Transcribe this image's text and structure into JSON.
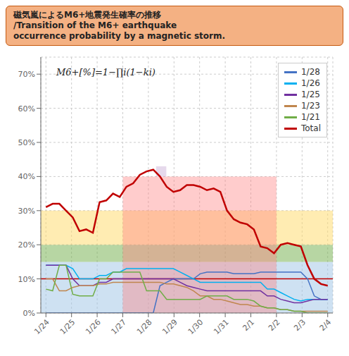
{
  "chart_data": {
    "type": "line",
    "title": "磁気嵐によるM6+地震発生確率の推移\n/Transition of the M6+ earthquake\noccurrence probability by a magnetic storm.",
    "x": [
      0,
      0.261905,
      0.52381,
      0.785714,
      1.047619,
      1.309524,
      1.571429,
      1.833333,
      2.095238,
      2.357143,
      2.619048,
      2.880952,
      3.142857,
      3.404762,
      3.666667,
      3.928571,
      4.190476,
      4.452381,
      4.714286,
      4.97619,
      5.238095,
      5.5,
      5.761905,
      6.02381,
      6.285714,
      6.547619,
      6.809524,
      7.071429,
      7.333333,
      7.595238,
      7.857143,
      8.119048,
      8.380952,
      8.642857,
      8.904762,
      9.166667,
      9.428571,
      9.690476,
      9.952381,
      10.214286,
      10.47619,
      10.738095,
      11
    ],
    "xlim": [
      -0.2,
      11.2
    ],
    "xticks": [
      {
        "value": 0,
        "label": "1/24"
      },
      {
        "value": 1,
        "label": "1/25"
      },
      {
        "value": 2,
        "label": "1/26"
      },
      {
        "value": 3,
        "label": "1/27"
      },
      {
        "value": 4,
        "label": "1/28"
      },
      {
        "value": 5,
        "label": "1/29"
      },
      {
        "value": 6,
        "label": "1/30"
      },
      {
        "value": 7,
        "label": "1/31"
      },
      {
        "value": 8,
        "label": "2/1"
      },
      {
        "value": 9,
        "label": "2/2"
      },
      {
        "value": 10,
        "label": "2/3"
      },
      {
        "value": 11,
        "label": "2/4"
      }
    ],
    "ylim": [
      0.0,
      0.75
    ],
    "yticks": [
      {
        "value": 0.0,
        "label": "0%"
      },
      {
        "value": 0.1,
        "label": "10%"
      },
      {
        "value": 0.2,
        "label": "20%"
      },
      {
        "value": 0.3,
        "label": "30%"
      },
      {
        "value": 0.4,
        "label": "40%"
      },
      {
        "value": 0.5,
        "label": "50%"
      },
      {
        "value": 0.6,
        "label": "60%"
      },
      {
        "value": 0.7,
        "label": "70%"
      }
    ],
    "grid": true,
    "legend": "upper right",
    "series": [
      {
        "name": "1/28",
        "color": "#4472c4",
        "values": [
          0.0,
          0.0,
          0.0,
          0.0,
          0.0,
          0.0,
          0.0,
          0.0,
          0.0,
          0.0,
          0.0,
          0.0,
          0.0,
          0.0,
          0.0,
          0.0,
          0.0,
          0.08,
          0.09,
          0.1,
          0.1,
          0.1,
          0.1,
          0.115,
          0.12,
          0.12,
          0.12,
          0.12,
          0.115,
          0.115,
          0.115,
          0.115,
          0.12,
          0.12,
          0.12,
          0.12,
          0.12,
          0.12,
          0.12,
          0.1,
          0.05,
          0.04,
          0.04
        ]
      },
      {
        "name": "1/26",
        "color": "#00b0f0",
        "values": [
          0.14,
          0.14,
          0.14,
          0.14,
          0.13,
          0.1,
          0.1,
          0.1,
          0.11,
          0.11,
          0.12,
          0.12,
          0.13,
          0.13,
          0.13,
          0.13,
          0.13,
          0.13,
          0.13,
          0.13,
          0.12,
          0.11,
          0.1,
          0.09,
          0.09,
          0.09,
          0.09,
          0.09,
          0.09,
          0.09,
          0.09,
          0.09,
          0.09,
          0.07,
          0.07,
          0.06,
          0.05,
          0.04,
          0.035,
          0.04,
          0.04,
          0.04,
          0.04
        ]
      },
      {
        "name": "1/25",
        "color": "#7030a0",
        "values": [
          0.14,
          0.14,
          0.14,
          0.14,
          0.1,
          0.08,
          0.08,
          0.08,
          0.09,
          0.09,
          0.1,
          0.1,
          0.1,
          0.1,
          0.1,
          0.1,
          0.1,
          0.1,
          0.1,
          0.1,
          0.09,
          0.08,
          0.075,
          0.07,
          0.065,
          0.065,
          0.065,
          0.065,
          0.065,
          0.065,
          0.065,
          0.065,
          0.065,
          0.05,
          0.05,
          0.04,
          0.035,
          0.03,
          0.03,
          0.035,
          0.04,
          0.04,
          0.04
        ]
      },
      {
        "name": "1/23",
        "color": "#c0864e",
        "values": [
          0.1,
          0.1,
          0.065,
          0.065,
          0.075,
          0.08,
          0.08,
          0.08,
          0.085,
          0.085,
          0.09,
          0.09,
          0.09,
          0.09,
          0.09,
          0.09,
          0.09,
          0.09,
          0.085,
          0.085,
          0.08,
          0.075,
          0.065,
          0.05,
          0.05,
          0.04,
          0.04,
          0.035,
          0.03,
          0.025,
          0.025,
          0.02,
          0.02,
          0.015,
          0.015,
          0.01,
          0.01,
          0.005,
          0.005,
          0.005,
          0.005,
          0.005,
          0.005
        ]
      },
      {
        "name": "1/21",
        "color": "#70ad47",
        "values": [
          0.07,
          0.065,
          0.14,
          0.14,
          0.055,
          0.05,
          0.05,
          0.05,
          0.1,
          0.1,
          0.12,
          0.12,
          0.12,
          0.12,
          0.12,
          0.065,
          0.065,
          0.065,
          0.04,
          0.04,
          0.04,
          0.04,
          0.04,
          0.04,
          0.05,
          0.05,
          0.05,
          0.05,
          0.04,
          0.04,
          0.04,
          0.035,
          0.02,
          0.015,
          0.015,
          0.01,
          0.01,
          0.005,
          0.005,
          0.0,
          0.0,
          0.0,
          0.0
        ]
      },
      {
        "name": "Total",
        "color": "#c00000",
        "values": [
          0.31,
          0.32,
          0.32,
          0.3,
          0.28,
          0.24,
          0.245,
          0.235,
          0.325,
          0.33,
          0.35,
          0.34,
          0.37,
          0.38,
          0.405,
          0.415,
          0.42,
          0.4,
          0.37,
          0.355,
          0.36,
          0.375,
          0.375,
          0.37,
          0.36,
          0.365,
          0.355,
          0.3,
          0.275,
          0.265,
          0.26,
          0.245,
          0.195,
          0.19,
          0.175,
          0.2,
          0.205,
          0.2,
          0.195,
          0.14,
          0.1,
          0.085,
          0.08
        ]
      }
    ],
    "annotations": [
      {
        "text": "M6+[%]=1−∏i(1−ki)"
      }
    ],
    "bands": [
      {
        "y": [
          0.0,
          0.15
        ],
        "color": "#9dc3e6"
      },
      {
        "y": [
          0.15,
          0.2
        ],
        "color": "#70ad47"
      },
      {
        "y": [
          0.2,
          0.3
        ],
        "color": "#ffd966"
      }
    ],
    "rects": [
      {
        "x": [
          3,
          9
        ],
        "y": [
          0.0,
          0.4
        ],
        "color": "#ff8080"
      },
      {
        "x": [
          4.3,
          4.7
        ],
        "y": [
          0.4,
          0.43
        ],
        "color": "#c0a0d0"
      }
    ],
    "hlines": [
      {
        "y": 0.1,
        "color": "#c00000"
      }
    ]
  }
}
